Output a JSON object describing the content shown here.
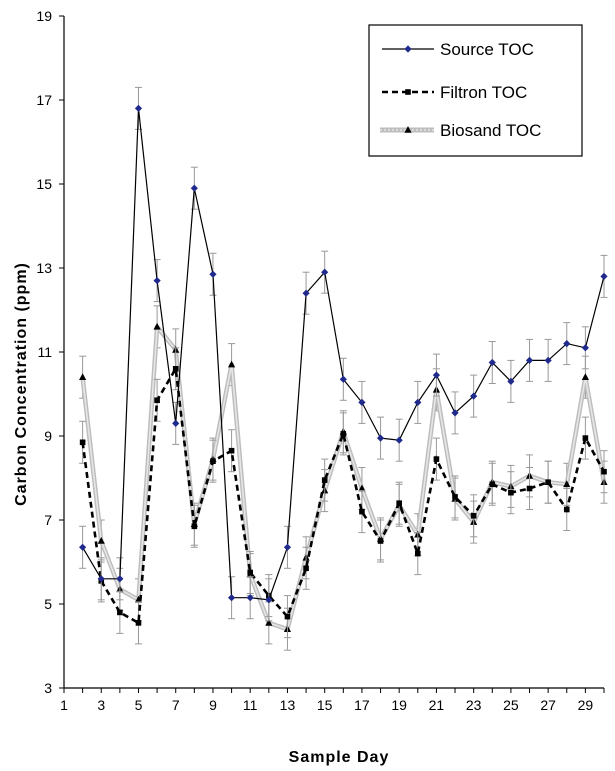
{
  "chart_data": {
    "type": "line",
    "title": "",
    "xlabel": "Sample Day",
    "ylabel": "Carbon Concentration (ppm)",
    "xlim": [
      1,
      30
    ],
    "ylim": [
      3,
      19
    ],
    "xticks": [
      1,
      3,
      5,
      7,
      9,
      11,
      13,
      15,
      17,
      19,
      21,
      23,
      25,
      27,
      29
    ],
    "yticks": [
      3,
      5,
      7,
      9,
      11,
      13,
      15,
      17,
      19
    ],
    "error_bar": 0.5,
    "legend_position": "top-right",
    "series": [
      {
        "name": "Source TOC",
        "style": "solid",
        "marker": "diamond",
        "color": "#000000",
        "marker_color": "#1f2a8c",
        "x": [
          2,
          3,
          4,
          5,
          6,
          7,
          8,
          9,
          10,
          11,
          12,
          13,
          14,
          15,
          16,
          17,
          18,
          19,
          20,
          21,
          22,
          23,
          24,
          25,
          26,
          27,
          28,
          29,
          30
        ],
        "values": [
          6.35,
          5.6,
          5.6,
          16.8,
          12.7,
          9.3,
          14.9,
          12.85,
          5.15,
          5.15,
          5.1,
          6.35,
          12.4,
          12.9,
          10.35,
          9.8,
          8.95,
          8.9,
          9.8,
          10.45,
          9.55,
          9.95,
          10.75,
          10.3,
          10.8,
          10.8,
          11.2,
          11.1,
          12.8
        ]
      },
      {
        "name": "Filtron TOC",
        "style": "dashed",
        "marker": "square",
        "color": "#000000",
        "marker_color": "#000000",
        "x": [
          2,
          3,
          4,
          5,
          6,
          7,
          8,
          9,
          10,
          11,
          12,
          13,
          14,
          15,
          16,
          17,
          18,
          19,
          20,
          21,
          22,
          23,
          24,
          25,
          26,
          27,
          28,
          29,
          30
        ],
        "values": [
          8.85,
          5.55,
          4.8,
          4.55,
          9.85,
          10.6,
          6.85,
          8.4,
          8.65,
          5.75,
          5.2,
          4.7,
          5.85,
          7.95,
          9.05,
          7.2,
          6.5,
          7.4,
          6.2,
          8.45,
          7.55,
          7.1,
          7.85,
          7.65,
          7.75,
          7.9,
          7.25,
          8.95,
          8.15
        ]
      },
      {
        "name": "Biosand TOC",
        "style": "grey-band",
        "marker": "triangle",
        "color": "#b8b8b8",
        "marker_color": "#000000",
        "x": [
          2,
          3,
          4,
          5,
          6,
          7,
          8,
          9,
          10,
          11,
          12,
          13,
          14,
          15,
          16,
          17,
          18,
          19,
          20,
          21,
          22,
          23,
          24,
          25,
          26,
          27,
          28,
          29,
          30
        ],
        "values": [
          10.4,
          6.5,
          5.35,
          5.1,
          11.6,
          11.05,
          6.9,
          8.45,
          10.7,
          5.7,
          4.55,
          4.4,
          6.1,
          7.7,
          9.1,
          7.75,
          6.55,
          7.35,
          6.65,
          10.1,
          7.5,
          6.95,
          7.9,
          7.8,
          8.05,
          7.9,
          7.85,
          10.4,
          7.9
        ]
      }
    ]
  }
}
